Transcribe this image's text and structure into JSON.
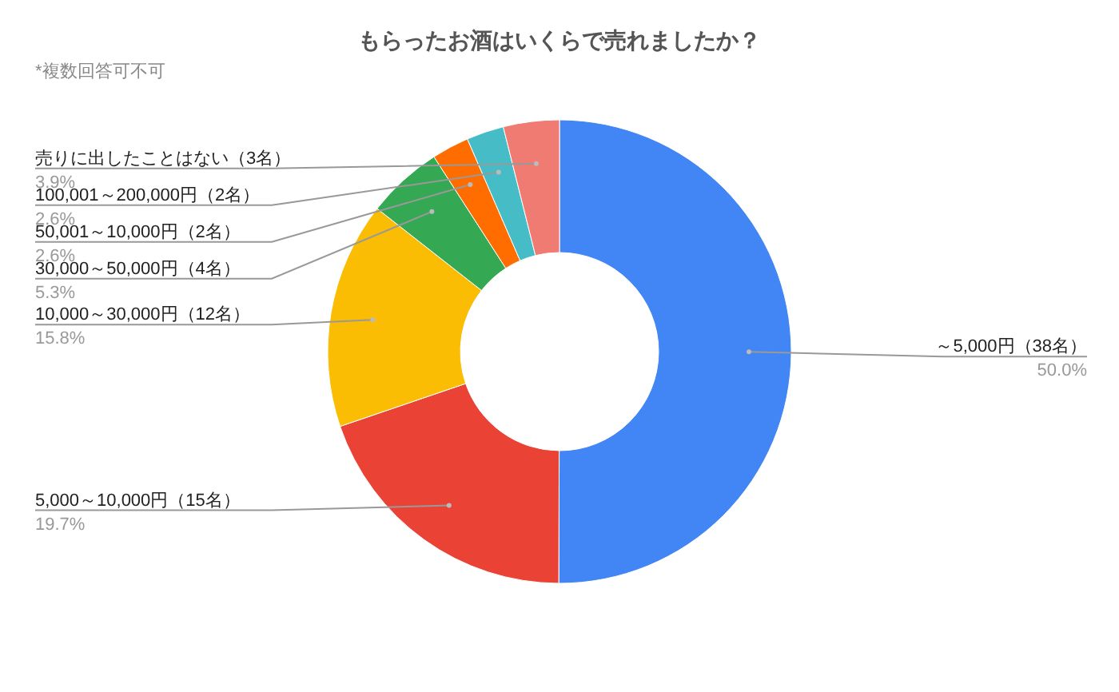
{
  "chart_data": {
    "type": "donut",
    "title": "もらったお酒はいくらで売れましたか？",
    "subtitle": "*複数回答可不可",
    "categories": [
      "～5,000円（38名）",
      "5,000～10,000円（15名）",
      "10,000～30,000円（12名）",
      "30,000～50,000円（4名）",
      "50,001～10,000円（2名）",
      "100,001～200,000円（2名）",
      "売りに出したことはない（3名）"
    ],
    "values": [
      50.0,
      19.7,
      15.8,
      5.3,
      2.6,
      2.6,
      3.9
    ],
    "value_labels": [
      "50.0%",
      "19.7%",
      "15.8%",
      "5.3%",
      "2.6%",
      "2.6%",
      "3.9%"
    ],
    "colors": [
      "#4285f4",
      "#ea4335",
      "#fbbc04",
      "#34a853",
      "#ff6d01",
      "#46bdc6",
      "#f07b72"
    ]
  }
}
